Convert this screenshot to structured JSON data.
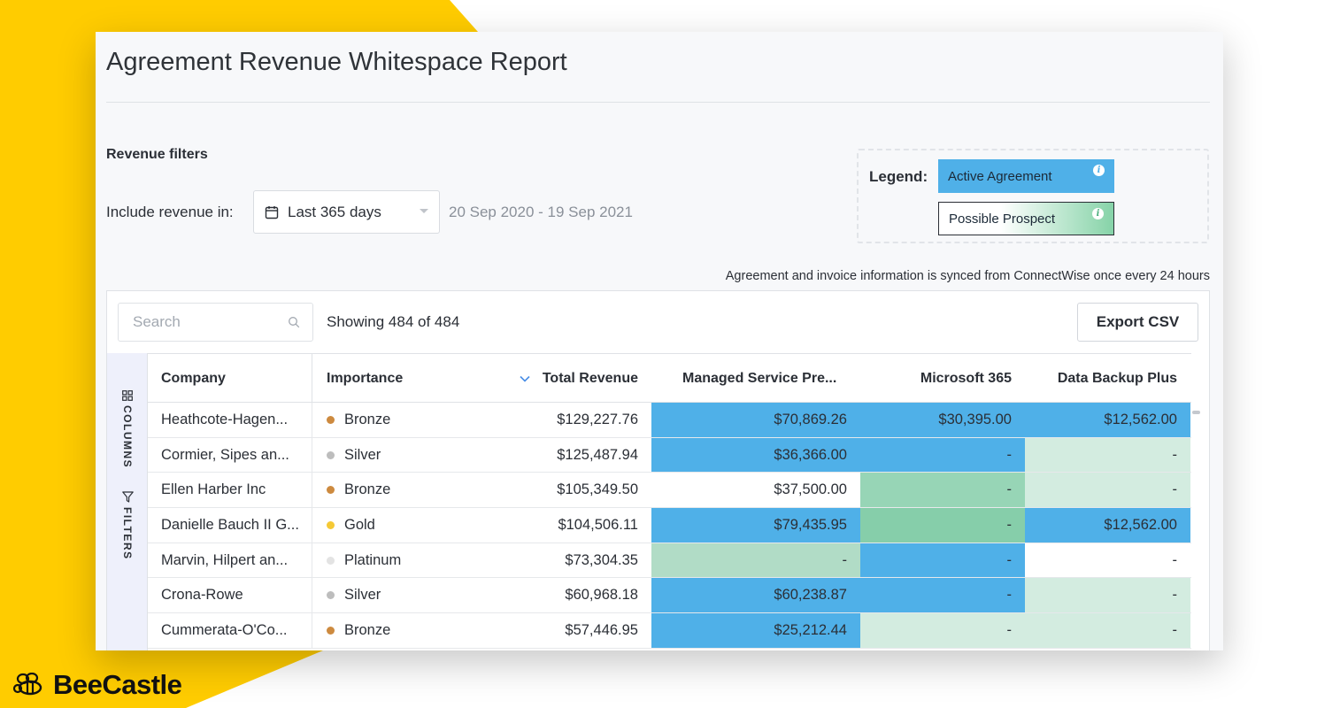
{
  "page": {
    "title": "Agreement Revenue Whitespace Report"
  },
  "filters": {
    "heading": "Revenue filters",
    "include_label": "Include revenue in:",
    "range_value": "Last 365 days",
    "date_range": "20 Sep 2020 - 19 Sep 2021"
  },
  "legend": {
    "label": "Legend:",
    "active": "Active Agreement",
    "prospect": "Possible Prospect"
  },
  "sync_note": "Agreement and invoice information is synced from ConnectWise once every 24 hours",
  "toolbar": {
    "search_placeholder": "Search",
    "showing": "Showing 484 of 484",
    "export_label": "Export CSV"
  },
  "sidebar": {
    "columns": "COLUMNS",
    "filters": "FILTERS"
  },
  "table": {
    "headers": {
      "company": "Company",
      "importance": "Importance",
      "total": "Total Revenue",
      "msp": "Managed Service Pre...",
      "m365": "Microsoft 365",
      "dbp": "Data Backup Plus"
    },
    "rows": [
      {
        "company": "Heathcote-Hagen...",
        "importance": "Bronze",
        "total": "$129,227.76",
        "msp": "$70,869.26",
        "m365": "$30,395.00",
        "dbp": "$12,562.00"
      },
      {
        "company": "Cormier, Sipes an...",
        "importance": "Silver",
        "total": "$125,487.94",
        "msp": "$36,366.00",
        "m365": "-",
        "dbp": "-"
      },
      {
        "company": "Ellen Harber Inc",
        "importance": "Bronze",
        "total": "$105,349.50",
        "msp": "$37,500.00",
        "m365": "-",
        "dbp": "-"
      },
      {
        "company": "Danielle Bauch II G...",
        "importance": "Gold",
        "total": "$104,506.11",
        "msp": "$79,435.95",
        "m365": "-",
        "dbp": "$12,562.00"
      },
      {
        "company": "Marvin, Hilpert an...",
        "importance": "Platinum",
        "total": "$73,304.35",
        "msp": "-",
        "m365": "-",
        "dbp": "-"
      },
      {
        "company": "Crona-Rowe",
        "importance": "Silver",
        "total": "$60,968.18",
        "msp": "$60,238.87",
        "m365": "-",
        "dbp": "-"
      },
      {
        "company": "Cummerata-O'Co...",
        "importance": "Bronze",
        "total": "$57,446.95",
        "msp": "$25,212.44",
        "m365": "-",
        "dbp": "-"
      }
    ]
  },
  "colors": {
    "brand_yellow": "#ffcc00",
    "active": "#4fb0e8",
    "prospect_strong": "#86ceaa",
    "prospect_light": "#d3ece0",
    "bronze": "#cd8a3f",
    "silver": "#bdbdbd",
    "gold": "#f5c935",
    "platinum": "#e3e3e3"
  },
  "brand": {
    "name": "BeeCastle",
    "icon": "bee-icon"
  }
}
